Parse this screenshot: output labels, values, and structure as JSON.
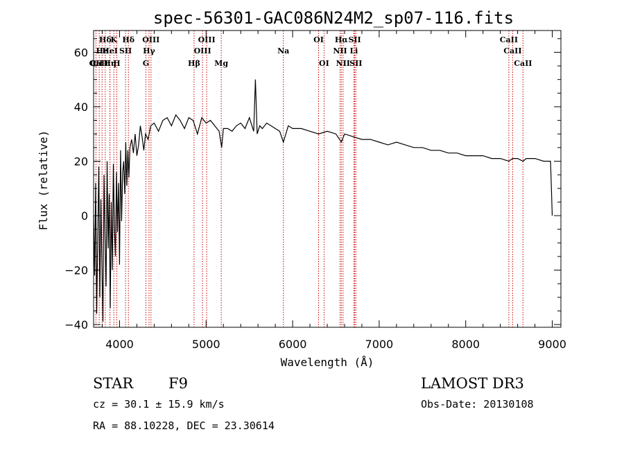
{
  "chart_data": {
    "type": "line",
    "title": "spec-56301-GAC086N24M2_sp07-116.fits",
    "xlabel": "Wavelength (Å)",
    "ylabel": "Flux (relative)",
    "xlim": [
      3700,
      9100
    ],
    "ylim": [
      -41,
      68
    ],
    "xticks": [
      4000,
      5000,
      6000,
      7000,
      8000,
      9000
    ],
    "xtick_labels": [
      "4000",
      "5000",
      "6000",
      "7000",
      "8000",
      "9000"
    ],
    "yticks": [
      -40,
      -20,
      0,
      20,
      40,
      60
    ],
    "ytick_labels": [
      "−40",
      "−20",
      "0",
      "20",
      "40",
      "60"
    ],
    "lines": [
      {
        "label": "Hδ",
        "x": 3835,
        "row": 1
      },
      {
        "label": "OII",
        "x": 3727,
        "row": 3
      },
      {
        "label": "CaII",
        "x": 3765,
        "row": 3
      },
      {
        "label": "He",
        "x": 3798,
        "row": 2
      },
      {
        "label": "Hη",
        "x": 3889,
        "row": 3
      },
      {
        "label": "HeI",
        "x": 3889,
        "row": 2
      },
      {
        "label": "K",
        "x": 3934,
        "row": 1
      },
      {
        "label": "H",
        "x": 3968,
        "row": 3
      },
      {
        "label": "SII",
        "x": 4069,
        "row": 2
      },
      {
        "label": "Hδ",
        "x": 4102,
        "row": 1
      },
      {
        "label": "OIII",
        "x": 4363,
        "row": 1
      },
      {
        "label": "Hγ",
        "x": 4340,
        "row": 2
      },
      {
        "label": "G",
        "x": 4304,
        "row": 3
      },
      {
        "label": "Hβ",
        "x": 4861,
        "row": 3
      },
      {
        "label": "OIII",
        "x": 4959,
        "row": 2
      },
      {
        "label": "OIII",
        "x": 5007,
        "row": 1
      },
      {
        "label": "Mg",
        "x": 5175,
        "row": 3
      },
      {
        "label": "Na",
        "x": 5893,
        "row": 2
      },
      {
        "label": "OI",
        "x": 6300,
        "row": 1
      },
      {
        "label": "OI",
        "x": 6363,
        "row": 3
      },
      {
        "label": "Hα",
        "x": 6563,
        "row": 1
      },
      {
        "label": "NII",
        "x": 6548,
        "row": 2
      },
      {
        "label": "NII",
        "x": 6583,
        "row": 3
      },
      {
        "label": "SII",
        "x": 6717,
        "row": 1
      },
      {
        "label": "Li",
        "x": 6708,
        "row": 2
      },
      {
        "label": "SII",
        "x": 6731,
        "row": 3
      },
      {
        "label": "CaII",
        "x": 8498,
        "row": 1
      },
      {
        "label": "CaII",
        "x": 8542,
        "row": 2
      },
      {
        "label": "CaII",
        "x": 8662,
        "row": 3
      }
    ],
    "series": [
      {
        "name": "flux",
        "x": [
          3700,
          3712,
          3724,
          3736,
          3748,
          3760,
          3772,
          3784,
          3796,
          3808,
          3820,
          3832,
          3844,
          3856,
          3868,
          3880,
          3892,
          3904,
          3916,
          3928,
          3940,
          3952,
          3964,
          3976,
          3988,
          4000,
          4012,
          4024,
          4036,
          4048,
          4060,
          4072,
          4084,
          4096,
          4108,
          4120,
          4140,
          4160,
          4180,
          4200,
          4220,
          4240,
          4260,
          4280,
          4300,
          4330,
          4360,
          4400,
          4450,
          4500,
          4550,
          4600,
          4650,
          4700,
          4750,
          4800,
          4850,
          4900,
          4950,
          5000,
          5050,
          5100,
          5150,
          5180,
          5200,
          5250,
          5300,
          5350,
          5400,
          5450,
          5500,
          5550,
          5570,
          5590,
          5620,
          5650,
          5700,
          5750,
          5800,
          5850,
          5893,
          5950,
          6000,
          6100,
          6200,
          6300,
          6400,
          6500,
          6563,
          6600,
          6700,
          6800,
          6900,
          7000,
          7100,
          7200,
          7300,
          7400,
          7500,
          7600,
          7700,
          7800,
          7900,
          8000,
          8100,
          8200,
          8300,
          8400,
          8498,
          8542,
          8600,
          8662,
          8700,
          8800,
          8900,
          8980,
          8990,
          9000
        ],
        "y": [
          0,
          -22,
          12,
          -36,
          -8,
          18,
          -30,
          6,
          -18,
          -39,
          15,
          -8,
          -26,
          20,
          -12,
          8,
          -34,
          5,
          -20,
          19,
          -4,
          -15,
          16,
          -6,
          12,
          -18,
          24,
          -2,
          16,
          20,
          8,
          27,
          11,
          24,
          14,
          25,
          28,
          23,
          30,
          22,
          26,
          33,
          29,
          24,
          30,
          28,
          33,
          34,
          31,
          35,
          36,
          33,
          37,
          35,
          32,
          36,
          35,
          30,
          36,
          34,
          35,
          33,
          31,
          25,
          32,
          32,
          31,
          33,
          34,
          32,
          36,
          31,
          50,
          30,
          33,
          32,
          34,
          33,
          32,
          31,
          27,
          33,
          32,
          32,
          31,
          30,
          31,
          30,
          27,
          30,
          29,
          28,
          28,
          27,
          26,
          27,
          26,
          25,
          25,
          24,
          24,
          23,
          23,
          22,
          22,
          22,
          21,
          21,
          20,
          21,
          21,
          20,
          21,
          21,
          20,
          20,
          10,
          0
        ]
      }
    ]
  },
  "footer": {
    "object_type": "STAR",
    "subclass": "F9",
    "survey": "LAMOST DR3",
    "cz_text": "cz = 30.1 ± 15.9 km/s",
    "obs_date": "Obs-Date: 20130108",
    "coords": "RA =  88.10228, DEC =  23.30614"
  },
  "colors": {
    "line_marker": "#cc0000",
    "spectrum": "#000000",
    "axes": "#000000"
  }
}
